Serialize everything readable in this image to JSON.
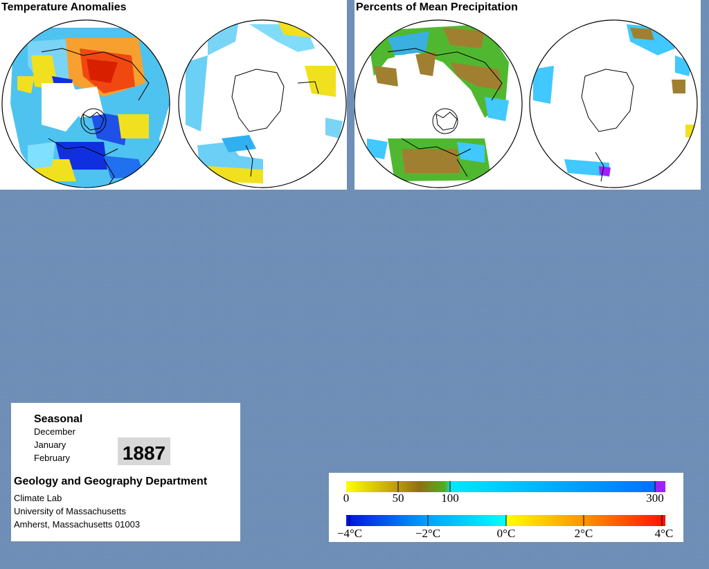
{
  "panels": {
    "temperature": {
      "title": "Temperature Anomalies"
    },
    "precipitation": {
      "title": "Percents of Mean Precipitation"
    }
  },
  "info": {
    "season": "Seasonal",
    "months": [
      "December",
      "January",
      "February"
    ],
    "year": "1887",
    "department": "Geology and Geography Department",
    "address_lines": [
      "Climate Lab",
      "University of Massachusetts",
      "Amherst, Massachusetts 01003"
    ]
  },
  "legend": {
    "precipitation": {
      "labels": [
        "0",
        "50",
        "100",
        "300"
      ],
      "colors": [
        "#ffff00",
        "#a08020",
        "#40c000",
        "#00e8ff",
        "#0070ff",
        "#a020ff"
      ]
    },
    "temperature": {
      "labels": [
        "−4°C",
        "−2°C",
        "0°C",
        "2°C",
        "4°C"
      ],
      "colors": [
        "#0010e0",
        "#00a0ff",
        "#00ffff",
        "#ffff00",
        "#ff8000",
        "#ff0000"
      ]
    }
  },
  "colors": {
    "background": "#7190b8",
    "cold_strong": "#1030e0",
    "cold": "#30b0f0",
    "neutral": "#80e0ff",
    "warm": "#f0e020",
    "hot": "#f04000",
    "dry": "#a08030",
    "moist": "#50c030",
    "wet": "#40c8ff",
    "very_wet": "#a020ff"
  }
}
